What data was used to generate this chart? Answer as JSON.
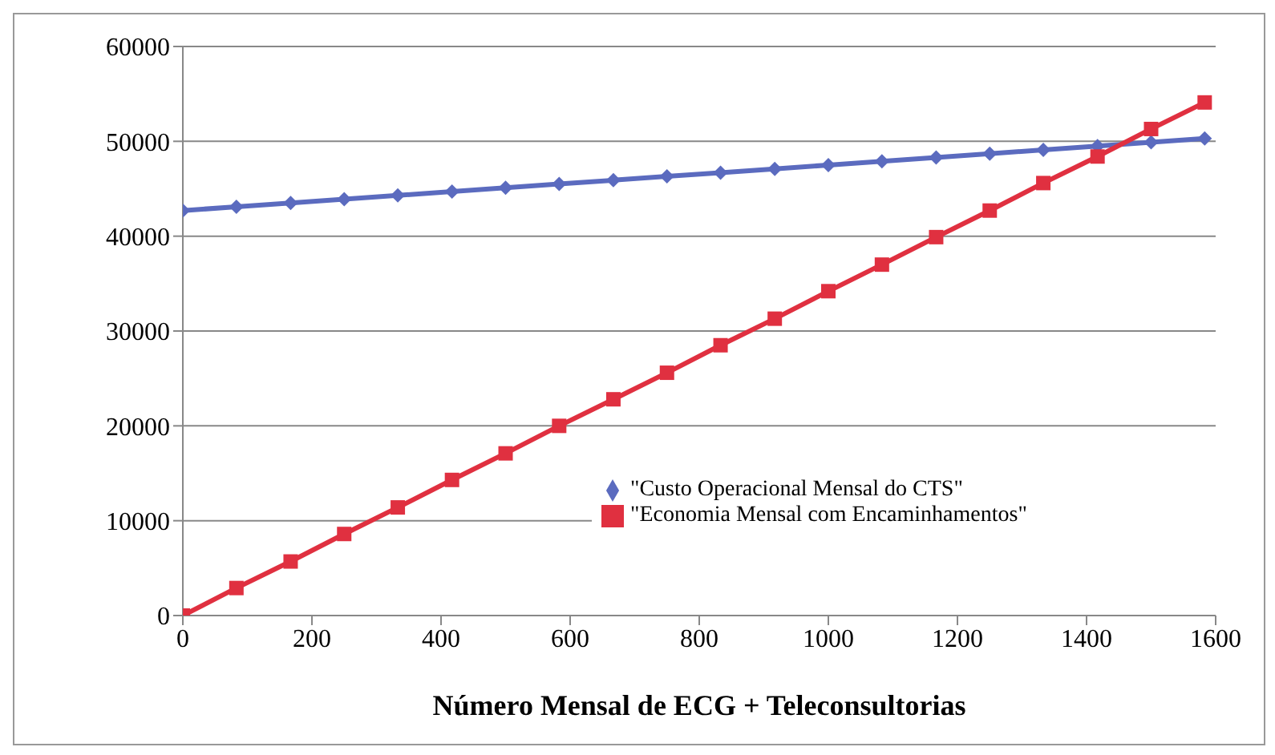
{
  "chart_data": {
    "type": "line",
    "xlabel": "Número Mensal de ECG + Teleconsultorias",
    "x": [
      0,
      83,
      167,
      250,
      333,
      417,
      500,
      583,
      667,
      750,
      833,
      917,
      1000,
      1083,
      1167,
      1250,
      1333,
      1417,
      1500,
      1583
    ],
    "series": [
      {
        "name": "\"Custo Operacional Mensal do CTS\"",
        "color": "#5b6bbf",
        "marker": "diamond",
        "values": [
          42700,
          43100,
          43500,
          43900,
          44300,
          44700,
          45100,
          45500,
          45900,
          46300,
          46700,
          47100,
          47500,
          47900,
          48300,
          48700,
          49100,
          49500,
          49900,
          50300
        ]
      },
      {
        "name": "\"Economia Mensal com Encaminhamentos\"",
        "color": "#e03040",
        "marker": "square",
        "values": [
          0,
          2900,
          5700,
          8600,
          11400,
          14300,
          17100,
          20000,
          22800,
          25600,
          28500,
          31300,
          34200,
          37000,
          39900,
          42700,
          45600,
          48400,
          51300,
          54100
        ]
      }
    ],
    "xlim": [
      0,
      1600
    ],
    "xticks": [
      0,
      200,
      400,
      600,
      800,
      1000,
      1200,
      1400,
      1600
    ],
    "ylim": [
      0,
      60000
    ],
    "yticks": [
      0,
      10000,
      20000,
      30000,
      40000,
      50000,
      60000
    ],
    "grid": "y",
    "legend": "bottom right"
  }
}
